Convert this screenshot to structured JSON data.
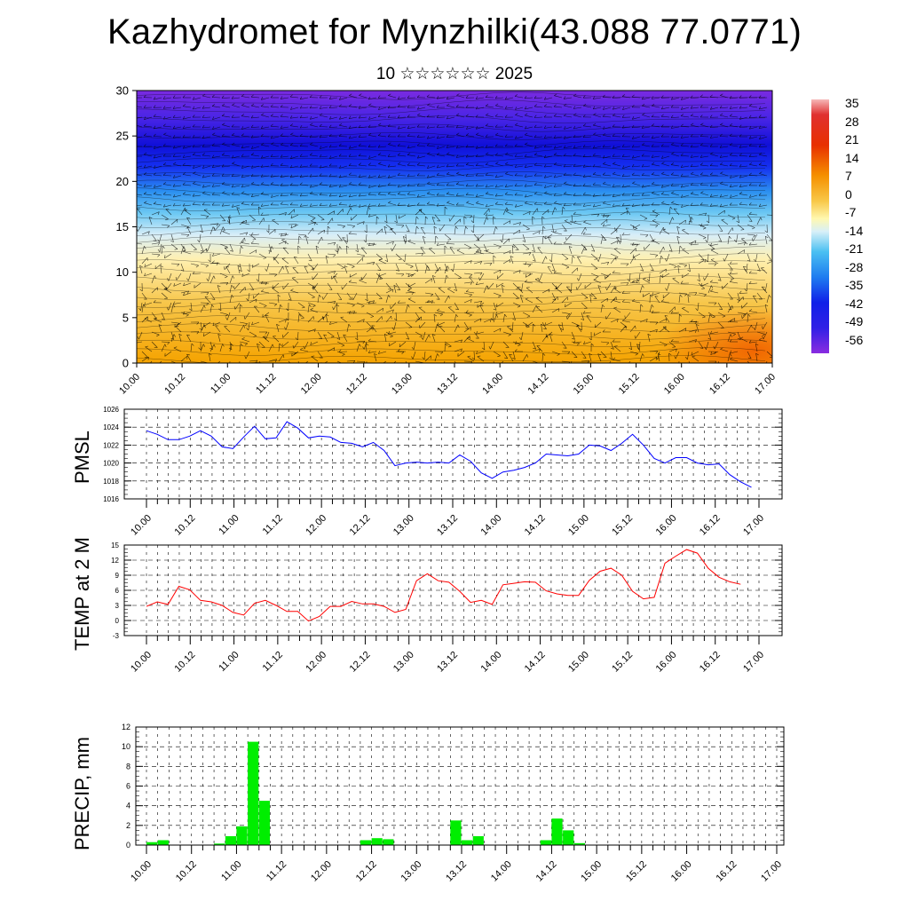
{
  "title": "Kazhydromet for Mynzhilki(43.088 77.0771)",
  "subtitle": "10 ☆☆☆☆☆☆ 2025",
  "colorbar": {
    "labels": [
      "35",
      "28",
      "21",
      "14",
      "7",
      "0",
      "-7",
      "-14",
      "-21",
      "-28",
      "-35",
      "-42",
      "-49",
      "-56"
    ]
  },
  "chart_data": [
    {
      "id": "vertical-section",
      "type": "heatmap",
      "ylim": [
        0,
        30
      ],
      "yticks": [
        "0",
        "5",
        "10",
        "15",
        "20",
        "25",
        "30"
      ],
      "xticks": [
        "10.00",
        "10.12",
        "11.00",
        "11.12",
        "12.00",
        "12.12",
        "13.00",
        "13.12",
        "14.00",
        "14.12",
        "15.00",
        "15.12",
        "16.00",
        "16.12",
        "17.00"
      ],
      "colors": {
        "cold": "#7a2be0",
        "warm": "#f39a00"
      }
    },
    {
      "id": "pmsl",
      "type": "line",
      "ylabel": "PMSL",
      "ylim": [
        1016,
        1026
      ],
      "yticks": [
        "1016",
        "1018",
        "1020",
        "1022",
        "1024",
        "1026"
      ],
      "xticks": [
        "10.00",
        "10.12",
        "11.00",
        "11.12",
        "12.00",
        "12.12",
        "13.00",
        "13.12",
        "14.00",
        "14.12",
        "15.00",
        "15.12",
        "16.00",
        "16.12",
        "17.00"
      ],
      "color": "#0000ff",
      "values": [
        1023.6,
        1023.2,
        1022.6,
        1022.6,
        1023.0,
        1023.6,
        1023.0,
        1021.8,
        1021.6,
        1022.9,
        1024.1,
        1022.7,
        1022.8,
        1024.6,
        1023.9,
        1022.8,
        1023.0,
        1022.9,
        1022.3,
        1022.2,
        1021.8,
        1022.3,
        1021.4,
        1019.7,
        1020.0,
        1020.1,
        1020.0,
        1020.1,
        1020.0,
        1020.9,
        1020.2,
        1018.9,
        1018.3,
        1019.0,
        1019.2,
        1019.5,
        1020.0,
        1021.0,
        1020.9,
        1020.8,
        1021.0,
        1022.0,
        1021.9,
        1021.4,
        1022.2,
        1023.2,
        1022.0,
        1020.5,
        1020.0,
        1020.6,
        1020.6,
        1020.0,
        1019.8,
        1019.9,
        1018.7,
        1017.9,
        1017.3
      ]
    },
    {
      "id": "temp",
      "type": "line",
      "ylabel": "TEMP at 2 M",
      "ylim": [
        -3,
        15
      ],
      "yticks": [
        "-3",
        "0",
        "3",
        "6",
        "9",
        "12",
        "15"
      ],
      "xticks": [
        "10.00",
        "10.12",
        "11.00",
        "11.12",
        "12.00",
        "12.12",
        "13.00",
        "13.12",
        "14.00",
        "14.12",
        "15.00",
        "15.12",
        "16.00",
        "16.12",
        "17.00"
      ],
      "color": "#ff0000",
      "values": [
        2.8,
        3.7,
        3.2,
        6.8,
        6.1,
        4.0,
        3.7,
        3.0,
        1.6,
        1.1,
        3.4,
        4.0,
        3.0,
        1.8,
        1.8,
        -0.1,
        0.8,
        2.8,
        2.8,
        3.8,
        3.3,
        3.3,
        2.8,
        1.6,
        2.2,
        7.9,
        9.3,
        7.9,
        7.6,
        5.8,
        3.6,
        4.0,
        3.2,
        7.1,
        7.4,
        7.7,
        7.6,
        5.9,
        5.3,
        5.0,
        5.0,
        8.0,
        9.8,
        10.4,
        9.0,
        5.8,
        4.3,
        4.6,
        11.4,
        12.8,
        14.1,
        13.4,
        10.4,
        8.6,
        7.7,
        7.2
      ]
    },
    {
      "id": "precip",
      "type": "bar",
      "ylabel": "PRECIP, mm",
      "ylim": [
        0,
        12
      ],
      "yticks": [
        "0",
        "2",
        "4",
        "6",
        "8",
        "10",
        "12"
      ],
      "xticks": [
        "10.00",
        "10.12",
        "11.00",
        "11.12",
        "12.00",
        "12.12",
        "13.00",
        "13.12",
        "14.00",
        "14.12",
        "15.00",
        "15.12",
        "16.00",
        "16.12",
        "17.00"
      ],
      "color": "#00ee00",
      "values": [
        0.3,
        0.5,
        0,
        0,
        0,
        0,
        0.15,
        0.9,
        1.9,
        10.5,
        4.5,
        0,
        0,
        0,
        0,
        0,
        0,
        0,
        0,
        0.5,
        0.7,
        0.6,
        0,
        0,
        0,
        0,
        0,
        2.5,
        0.5,
        0.9,
        0,
        0,
        0,
        0,
        0,
        0.5,
        2.7,
        1.5,
        0.2,
        0,
        0,
        0,
        0,
        0,
        0,
        0,
        0,
        0,
        0,
        0,
        0,
        0,
        0,
        0,
        0,
        0
      ]
    }
  ]
}
